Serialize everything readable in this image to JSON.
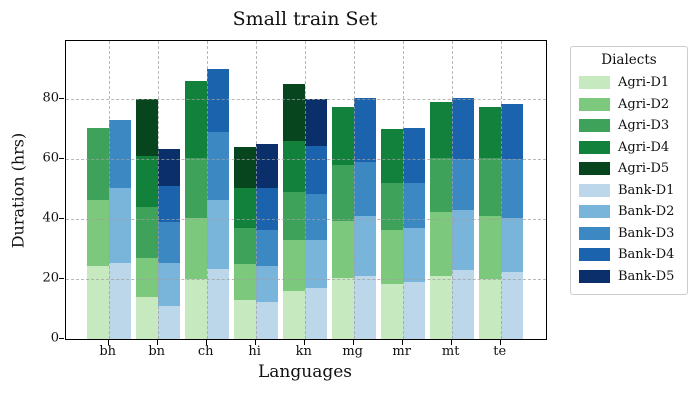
{
  "chart_data": {
    "type": "bar",
    "stacked": true,
    "title": "Small train Set",
    "xlabel": "Languages",
    "ylabel": "Duration (hrs)",
    "categories": [
      "bh",
      "bn",
      "ch",
      "hi",
      "kn",
      "mg",
      "mr",
      "mt",
      "te"
    ],
    "ylim": [
      0,
      99
    ],
    "yticks": [
      0,
      20,
      40,
      60,
      80
    ],
    "grid": "dashed gray, horizontal at yticks and vertical at category centers, drawn over bars",
    "legend": {
      "title": "Dialects",
      "position": "outside-right"
    },
    "stack_groups": [
      {
        "name": "Agri",
        "series": [
          {
            "name": "Agri-D1",
            "color": "#c7e9c0",
            "values": [
              24.5,
              14.0,
              20.0,
              13.0,
              16.0,
              20.5,
              18.5,
              21.0,
              20.0
            ]
          },
          {
            "name": "Agri-D2",
            "color": "#7cc87d",
            "values": [
              22.0,
              13.0,
              20.5,
              12.0,
              17.0,
              19.0,
              18.0,
              21.5,
              21.0
            ]
          },
          {
            "name": "Agri-D3",
            "color": "#3ea25b",
            "values": [
              24.0,
              17.0,
              20.0,
              12.0,
              16.0,
              18.5,
              15.5,
              18.0,
              19.5
            ]
          },
          {
            "name": "Agri-D4",
            "color": "#12813b",
            "values": [
              0,
              17.0,
              25.5,
              13.5,
              17.0,
              19.5,
              18.0,
              18.5,
              17.0
            ]
          },
          {
            "name": "Agri-D5",
            "color": "#06451d",
            "values": [
              0,
              19.0,
              0,
              13.5,
              19.0,
              0,
              0,
              0,
              0
            ]
          }
        ],
        "totals": [
          70.5,
          80.0,
          86.0,
          64.0,
          85.0,
          77.5,
          70.0,
          79.0,
          77.5
        ]
      },
      {
        "name": "Bank",
        "series": [
          {
            "name": "Bank-D1",
            "color": "#bdd7ea",
            "values": [
              25.5,
              11.0,
              23.5,
              12.5,
              17.0,
              21.0,
              19.0,
              23.0,
              22.5
            ]
          },
          {
            "name": "Bank-D2",
            "color": "#79b4da",
            "values": [
              25.0,
              14.5,
              23.0,
              12.0,
              16.0,
              20.0,
              18.0,
              20.0,
              18.0
            ]
          },
          {
            "name": "Bank-D3",
            "color": "#3c88c3",
            "values": [
              22.5,
              13.5,
              22.5,
              12.0,
              15.5,
              18.0,
              15.0,
              17.0,
              19.5
            ]
          },
          {
            "name": "Bank-D4",
            "color": "#1b63ad",
            "values": [
              0,
              12.0,
              21.0,
              14.0,
              16.0,
              21.5,
              18.5,
              20.5,
              18.5
            ]
          },
          {
            "name": "Bank-D5",
            "color": "#0b2f6b",
            "values": [
              0,
              12.5,
              0,
              14.5,
              15.5,
              0,
              0,
              0,
              0
            ]
          }
        ],
        "totals": [
          73.0,
          63.5,
          90.0,
          65.0,
          80.0,
          80.5,
          70.5,
          80.5,
          78.5
        ]
      }
    ]
  }
}
